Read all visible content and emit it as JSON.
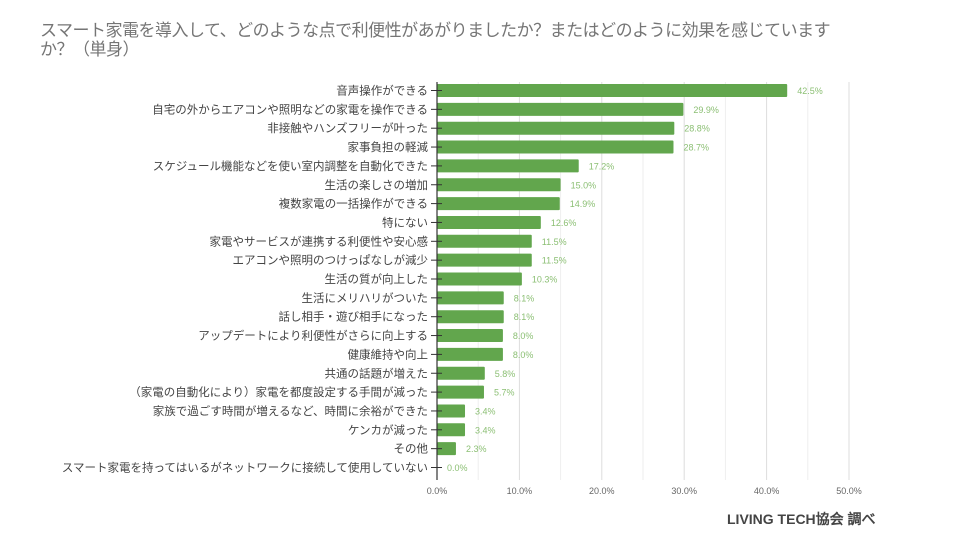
{
  "title": "スマート家電を導入して、どのような点で利便性があがりましたか？またはどのように効果を感じていますか？（単身）",
  "credit": "LIVING TECH協会 調べ",
  "colors": {
    "bar": "#62a64d",
    "label": "#8bbf73",
    "text": "#444444",
    "grid": "#e6e6e6",
    "axis": "#333333",
    "tick": "#666666"
  },
  "chart_data": {
    "type": "bar",
    "orientation": "horizontal",
    "title": "スマート家電を導入して、どのような点で利便性があがりましたか？またはどのように効果を感じていますか？（単身）",
    "xlabel": "",
    "ylabel": "",
    "xlim": [
      0,
      50
    ],
    "x_ticks": [
      0,
      10,
      20,
      30,
      40,
      50
    ],
    "x_tick_labels": [
      "0.0%",
      "10.0%",
      "20.0%",
      "30.0%",
      "40.0%",
      "50.0%"
    ],
    "minor_grid_step": 5,
    "grid": true,
    "legend": "none",
    "categories": [
      "音声操作ができる",
      "自宅の外からエアコンや照明などの家電を操作できる",
      "非接触やハンズフリーが叶った",
      "家事負担の軽減",
      "スケジュール機能などを使い室内調整を自動化できた",
      "生活の楽しさの増加",
      "複数家電の一括操作ができる",
      "特にない",
      "家電やサービスが連携する利便性や安心感",
      "エアコンや照明のつけっぱなしが減少",
      "生活の質が向上した",
      "生活にメリハリがついた",
      "話し相手・遊び相手になった",
      "アップデートにより利便性がさらに向上する",
      "健康維持や向上",
      "共通の話題が増えた",
      "（家電の自動化により）家電を都度設定する手間が減った",
      "家族で過ごす時間が増えるなど、時間に余裕ができた",
      "ケンカが減った",
      "その他",
      "スマート家電を持ってはいるがネットワークに接続して使用していない"
    ],
    "values": [
      42.5,
      29.9,
      28.8,
      28.7,
      17.2,
      15.0,
      14.9,
      12.6,
      11.5,
      11.5,
      10.3,
      8.1,
      8.1,
      8.0,
      8.0,
      5.8,
      5.7,
      3.4,
      3.4,
      2.3,
      0.0
    ],
    "value_labels": [
      "42.5%",
      "29.9%",
      "28.8%",
      "28.7%",
      "17.2%",
      "15.0%",
      "14.9%",
      "12.6%",
      "11.5%",
      "11.5%",
      "10.3%",
      "8.1%",
      "8.1%",
      "8.0%",
      "8.0%",
      "5.8%",
      "5.7%",
      "3.4%",
      "3.4%",
      "2.3%",
      "0.0%"
    ]
  }
}
